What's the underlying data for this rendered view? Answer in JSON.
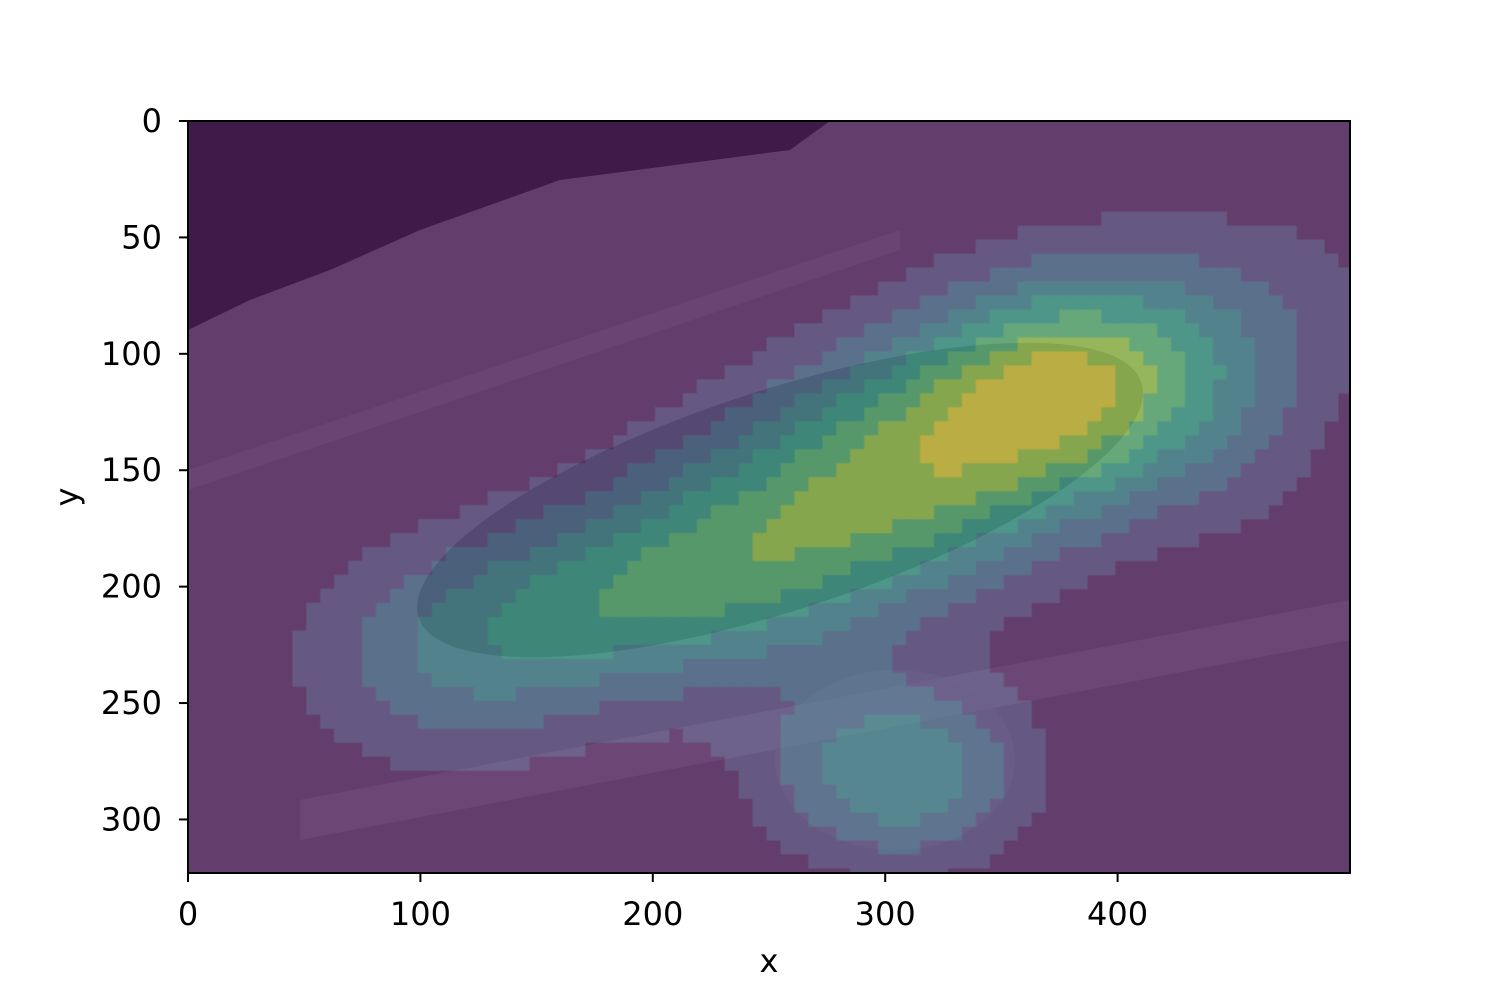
{
  "chart_data": {
    "type": "heatmap",
    "title": "",
    "xlabel": "x",
    "ylabel": "y",
    "xlim": [
      0,
      500
    ],
    "ylim": [
      323,
      0
    ],
    "y_axis_inverted": true,
    "xticks": [
      0,
      100,
      200,
      300,
      400
    ],
    "yticks": [
      0,
      50,
      100,
      150,
      200,
      250,
      300
    ],
    "grid": false,
    "legend": "none",
    "colormap": "viridis",
    "overlay_opacity": 0.55,
    "background": "grayscale photo of vehicles on a road",
    "contour_levels": 8,
    "hotspots": [
      {
        "cx": 330,
        "cy": 140,
        "sx": 95,
        "sy": 38,
        "rotation_deg": -22,
        "weight": 1.0
      },
      {
        "cx": 190,
        "cy": 205,
        "sx": 70,
        "sy": 30,
        "rotation_deg": -10,
        "weight": 0.5
      },
      {
        "cx": 110,
        "cy": 235,
        "sx": 45,
        "sy": 35,
        "rotation_deg": 0,
        "weight": 0.25
      },
      {
        "cx": 305,
        "cy": 280,
        "sx": 40,
        "sy": 28,
        "rotation_deg": 0,
        "weight": 0.6
      },
      {
        "cx": 380,
        "cy": 110,
        "sx": 40,
        "sy": 30,
        "rotation_deg": 0,
        "weight": 0.35
      },
      {
        "cx": 150,
        "cy": 25,
        "sx": 30,
        "sy": 20,
        "rotation_deg": -20,
        "weight": 0.15
      },
      {
        "cx": 450,
        "cy": 140,
        "sx": 30,
        "sy": 35,
        "rotation_deg": 0,
        "weight": 0.12
      }
    ]
  }
}
